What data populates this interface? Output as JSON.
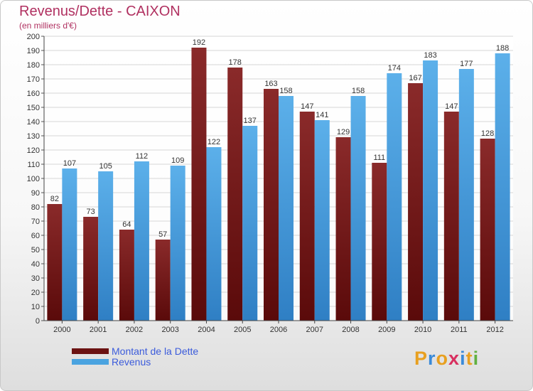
{
  "title": "Revenus/Dette - CAIXON",
  "subtitle": "(en milliers d'€)",
  "colors": {
    "title": "#b03060",
    "dette": "#7a1a1a",
    "revenus": "#4aa3e0",
    "legend_text": "#3b5bdb"
  },
  "logo": {
    "letters": [
      {
        "ch": "P",
        "color": "#e8a020"
      },
      {
        "ch": "r",
        "color": "#3a8ad8"
      },
      {
        "ch": "o",
        "color": "#e8a020"
      },
      {
        "ch": "x",
        "color": "#d83060"
      },
      {
        "ch": "i",
        "color": "#3a8ad8"
      },
      {
        "ch": "t",
        "color": "#e8a020"
      },
      {
        "ch": "i",
        "color": "#60b040"
      }
    ]
  },
  "chart_data": {
    "type": "bar",
    "title": "Revenus/Dette - CAIXON",
    "subtitle": "(en milliers d'€)",
    "categories": [
      "2000",
      "2001",
      "2002",
      "2003",
      "2004",
      "2005",
      "2006",
      "2007",
      "2008",
      "2009",
      "2010",
      "2011",
      "2012"
    ],
    "series": [
      {
        "name": "Montant de la Dette",
        "color": "#7a1a1a",
        "values": [
          82,
          73,
          64,
          57,
          192,
          178,
          163,
          147,
          129,
          111,
          167,
          147,
          128
        ]
      },
      {
        "name": "Revenus",
        "color": "#4aa3e0",
        "values": [
          107,
          105,
          112,
          109,
          122,
          137,
          158,
          141,
          158,
          174,
          183,
          177,
          188
        ]
      }
    ],
    "ylim": [
      0,
      200
    ],
    "ytick_step": 10,
    "grid": true,
    "legend_position": "bottom-left",
    "data_labels": true
  }
}
